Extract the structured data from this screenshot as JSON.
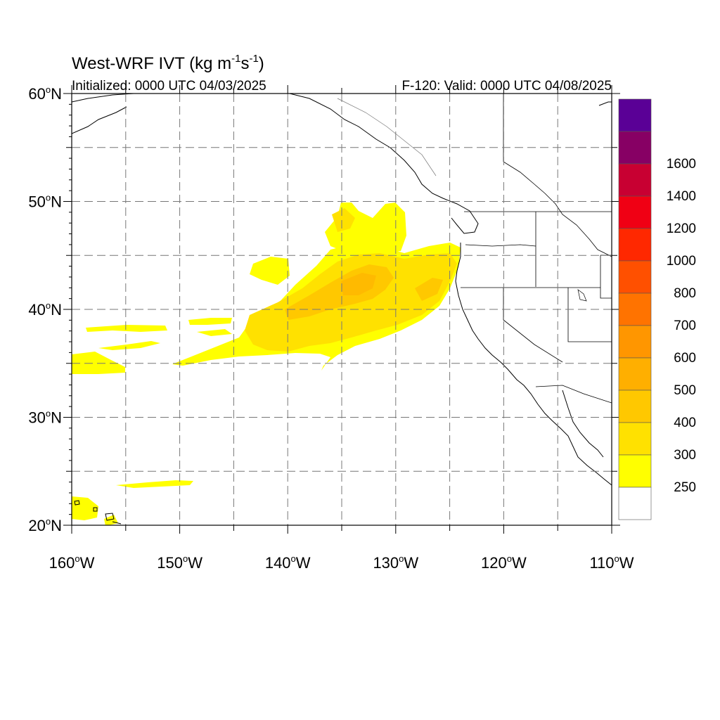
{
  "title": {
    "main": "West-WRF IVT (kg m",
    "sup1": "-1",
    "mid": "s",
    "sup2": "-1",
    "end": ")"
  },
  "subtitle_left": "Initialized: 0000 UTC 04/03/2025",
  "subtitle_right": "F-120: Valid: 0000 UTC 04/08/2025",
  "map": {
    "lon_range": [
      -160,
      -110
    ],
    "lat_range": [
      20,
      60
    ],
    "x_ticks": [
      {
        "lon": -160,
        "label": "160",
        "hemi": "W"
      },
      {
        "lon": -150,
        "label": "150",
        "hemi": "W"
      },
      {
        "lon": -140,
        "label": "140",
        "hemi": "W"
      },
      {
        "lon": -130,
        "label": "130",
        "hemi": "W"
      },
      {
        "lon": -120,
        "label": "120",
        "hemi": "W"
      },
      {
        "lon": -110,
        "label": "110",
        "hemi": "W"
      }
    ],
    "y_ticks": [
      {
        "lat": 60,
        "label": "60",
        "hemi": "N"
      },
      {
        "lat": 50,
        "label": "50",
        "hemi": "N"
      },
      {
        "lat": 40,
        "label": "40",
        "hemi": "N"
      },
      {
        "lat": 30,
        "label": "30",
        "hemi": "N"
      },
      {
        "lat": 20,
        "label": "20",
        "hemi": "N"
      }
    ],
    "gridlines": "dashed, every 5 degrees"
  },
  "colorbar": {
    "levels": [
      "250",
      "300",
      "400",
      "500",
      "600",
      "700",
      "800",
      "1000",
      "1200",
      "1400",
      "1600"
    ],
    "colors": [
      "#ffffff",
      "#ffff00",
      "#ffe100",
      "#ffc800",
      "#ffaf00",
      "#ff9600",
      "#ff7300",
      "#ff5000",
      "#ff2800",
      "#f00014",
      "#c80032",
      "#870064",
      "#5a0096"
    ]
  }
}
